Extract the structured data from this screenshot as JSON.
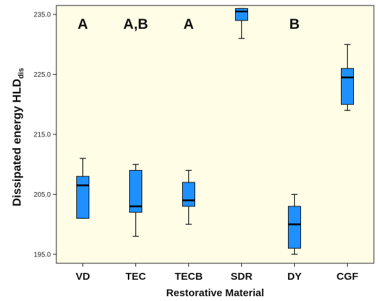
{
  "chart_data": {
    "type": "boxplot",
    "title": "",
    "xlabel": "Restorative Material",
    "ylabel_main": "Dissipated energy  HLD",
    "ylabel_sub": "dis",
    "ylim": [
      193.5,
      236.5
    ],
    "yticks": [
      195.0,
      205.0,
      215.0,
      225.0,
      235.0
    ],
    "ytick_labels": [
      "195.0",
      "205.0",
      "215.0",
      "225.0",
      "235.0"
    ],
    "grid": false,
    "box_color": "#1e90ff",
    "plot_bg": "#fffde6",
    "categories": [
      "VD",
      "TEC",
      "TECB",
      "SDR",
      "DY",
      "CGF"
    ],
    "boxes": [
      {
        "category": "VD",
        "min": 201.0,
        "q1": 201.0,
        "median": 206.5,
        "q3": 208.0,
        "max": 211.0
      },
      {
        "category": "TEC",
        "min": 198.0,
        "q1": 202.0,
        "median": 203.0,
        "q3": 209.0,
        "max": 210.0
      },
      {
        "category": "TECB",
        "min": 200.0,
        "q1": 203.0,
        "median": 204.0,
        "q3": 207.0,
        "max": 209.0
      },
      {
        "category": "SDR",
        "min": 231.0,
        "q1": 234.0,
        "median": 235.5,
        "q3": 236.0,
        "max": 236.0
      },
      {
        "category": "DY",
        "min": 195.0,
        "q1": 196.0,
        "median": 200.0,
        "q3": 203.0,
        "max": 205.0
      },
      {
        "category": "CGF",
        "min": 219.0,
        "q1": 220.0,
        "median": 224.5,
        "q3": 226.0,
        "max": 230.0
      }
    ],
    "group_labels": [
      {
        "category": "VD",
        "text": "A"
      },
      {
        "category": "TEC",
        "text": "A,B"
      },
      {
        "category": "TECB",
        "text": "A"
      },
      {
        "category": "DY",
        "text": "B"
      }
    ]
  }
}
